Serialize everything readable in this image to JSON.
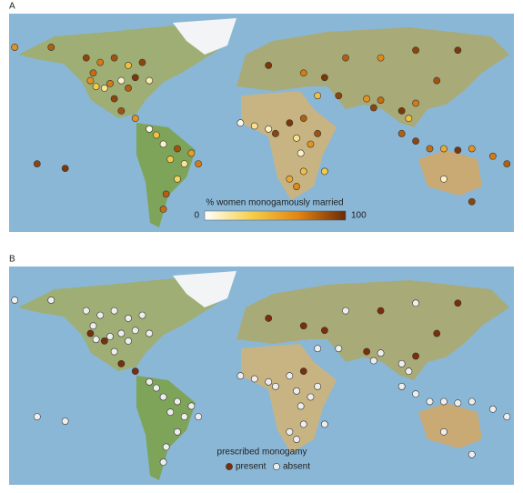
{
  "panels": [
    {
      "label": "A",
      "colorbar": {
        "title": "% women monogamously married",
        "ticks": [
          0,
          100
        ],
        "colors": [
          "#ffffff",
          "#f5cf4a",
          "#e08414",
          "#6b2a08"
        ]
      },
      "points": [
        [
          -176,
          62,
          60
        ],
        [
          -150,
          62,
          80
        ],
        [
          -125,
          55,
          90
        ],
        [
          -115,
          52,
          70
        ],
        [
          -105,
          55,
          85
        ],
        [
          -95,
          50,
          40
        ],
        [
          -85,
          52,
          90
        ],
        [
          -120,
          45,
          75
        ],
        [
          -122,
          40,
          60
        ],
        [
          -118,
          36,
          35
        ],
        [
          -112,
          35,
          20
        ],
        [
          -108,
          38,
          70
        ],
        [
          -100,
          40,
          10
        ],
        [
          -95,
          35,
          80
        ],
        [
          -90,
          42,
          95
        ],
        [
          -80,
          40,
          15
        ],
        [
          -105,
          28,
          90
        ],
        [
          -100,
          20,
          85
        ],
        [
          -90,
          15,
          60
        ],
        [
          -80,
          8,
          5
        ],
        [
          -75,
          4,
          40
        ],
        [
          -70,
          -2,
          10
        ],
        [
          -60,
          -5,
          85
        ],
        [
          -50,
          -8,
          55
        ],
        [
          -65,
          -12,
          35
        ],
        [
          -55,
          -15,
          20
        ],
        [
          -45,
          -15,
          70
        ],
        [
          -60,
          -25,
          30
        ],
        [
          -68,
          -35,
          80
        ],
        [
          -70,
          -45,
          75
        ],
        [
          -140,
          -18,
          95
        ],
        [
          -160,
          -15,
          90
        ],
        [
          -15,
          12,
          5
        ],
        [
          -5,
          10,
          20
        ],
        [
          5,
          8,
          10
        ],
        [
          10,
          5,
          90
        ],
        [
          20,
          12,
          95
        ],
        [
          30,
          15,
          80
        ],
        [
          25,
          2,
          20
        ],
        [
          35,
          -2,
          60
        ],
        [
          28,
          -8,
          10
        ],
        [
          30,
          -20,
          40
        ],
        [
          20,
          -25,
          50
        ],
        [
          25,
          -30,
          65
        ],
        [
          45,
          -20,
          35
        ],
        [
          40,
          5,
          85
        ],
        [
          5,
          50,
          95
        ],
        [
          30,
          45,
          70
        ],
        [
          45,
          42,
          95
        ],
        [
          60,
          55,
          80
        ],
        [
          85,
          55,
          65
        ],
        [
          110,
          60,
          90
        ],
        [
          140,
          60,
          95
        ],
        [
          40,
          30,
          40
        ],
        [
          55,
          30,
          90
        ],
        [
          75,
          28,
          60
        ],
        [
          80,
          22,
          90
        ],
        [
          85,
          27,
          75
        ],
        [
          100,
          20,
          95
        ],
        [
          105,
          15,
          40
        ],
        [
          110,
          25,
          70
        ],
        [
          125,
          40,
          85
        ],
        [
          100,
          5,
          80
        ],
        [
          110,
          0,
          90
        ],
        [
          120,
          -5,
          75
        ],
        [
          130,
          -5,
          50
        ],
        [
          140,
          -6,
          95
        ],
        [
          150,
          -5,
          60
        ],
        [
          165,
          -10,
          70
        ],
        [
          175,
          -15,
          80
        ],
        [
          130,
          -25,
          10
        ],
        [
          150,
          -40,
          90
        ]
      ]
    },
    {
      "label": "B",
      "legend": {
        "title": "prescribed monogamy",
        "items": [
          {
            "label": "present",
            "color": "#7a2e0b"
          },
          {
            "label": "absent",
            "color": "#eeeeee"
          }
        ]
      },
      "points": [
        [
          -176,
          62,
          0
        ],
        [
          -150,
          62,
          0
        ],
        [
          -125,
          55,
          0
        ],
        [
          -115,
          52,
          0
        ],
        [
          -105,
          55,
          0
        ],
        [
          -95,
          50,
          0
        ],
        [
          -85,
          52,
          0
        ],
        [
          -120,
          45,
          0
        ],
        [
          -122,
          40,
          1
        ],
        [
          -118,
          36,
          0
        ],
        [
          -112,
          35,
          1
        ],
        [
          -108,
          38,
          0
        ],
        [
          -100,
          40,
          0
        ],
        [
          -95,
          35,
          0
        ],
        [
          -90,
          42,
          0
        ],
        [
          -80,
          40,
          0
        ],
        [
          -105,
          28,
          0
        ],
        [
          -100,
          20,
          1
        ],
        [
          -90,
          15,
          1
        ],
        [
          -80,
          8,
          0
        ],
        [
          -75,
          4,
          0
        ],
        [
          -70,
          -2,
          0
        ],
        [
          -60,
          -5,
          0
        ],
        [
          -50,
          -8,
          0
        ],
        [
          -65,
          -12,
          0
        ],
        [
          -55,
          -15,
          0
        ],
        [
          -45,
          -15,
          0
        ],
        [
          -60,
          -25,
          0
        ],
        [
          -68,
          -35,
          0
        ],
        [
          -70,
          -45,
          0
        ],
        [
          -140,
          -18,
          0
        ],
        [
          -160,
          -15,
          0
        ],
        [
          -15,
          12,
          0
        ],
        [
          -5,
          10,
          0
        ],
        [
          5,
          8,
          0
        ],
        [
          10,
          5,
          0
        ],
        [
          20,
          12,
          0
        ],
        [
          30,
          15,
          1
        ],
        [
          25,
          2,
          0
        ],
        [
          35,
          -2,
          0
        ],
        [
          28,
          -8,
          0
        ],
        [
          30,
          -20,
          0
        ],
        [
          20,
          -25,
          0
        ],
        [
          25,
          -30,
          0
        ],
        [
          45,
          -20,
          0
        ],
        [
          40,
          5,
          0
        ],
        [
          5,
          50,
          1
        ],
        [
          30,
          45,
          1
        ],
        [
          45,
          42,
          1
        ],
        [
          60,
          55,
          0
        ],
        [
          85,
          55,
          1
        ],
        [
          110,
          60,
          0
        ],
        [
          140,
          60,
          1
        ],
        [
          40,
          30,
          0
        ],
        [
          55,
          30,
          0
        ],
        [
          75,
          28,
          1
        ],
        [
          80,
          22,
          0
        ],
        [
          85,
          27,
          0
        ],
        [
          100,
          20,
          0
        ],
        [
          105,
          15,
          0
        ],
        [
          110,
          25,
          1
        ],
        [
          125,
          40,
          1
        ],
        [
          100,
          5,
          0
        ],
        [
          110,
          0,
          0
        ],
        [
          120,
          -5,
          0
        ],
        [
          130,
          -5,
          0
        ],
        [
          140,
          -6,
          0
        ],
        [
          150,
          -5,
          0
        ],
        [
          165,
          -10,
          0
        ],
        [
          175,
          -15,
          0
        ],
        [
          130,
          -25,
          0
        ],
        [
          150,
          -40,
          0
        ]
      ]
    }
  ]
}
